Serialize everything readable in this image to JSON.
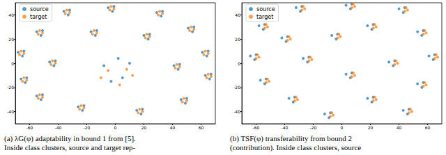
{
  "chart_data": [
    {
      "type": "scatter",
      "caption": [
        "(a) λG(φ) adaptability in bound 1 from [5].",
        "Inside class clusters, source and target rep-"
      ],
      "xlim": [
        -70,
        70
      ],
      "xticks": [
        -60,
        -40,
        -20,
        0,
        20,
        40,
        60
      ],
      "ylim": [
        -50,
        50
      ],
      "yticks": [
        -40,
        -20,
        0,
        20,
        40
      ],
      "legend": "upper left",
      "grid": false,
      "series": [
        {
          "name": "source",
          "color": "#1f77b4",
          "marker": "circle",
          "values": [
            [
              -36,
              43
            ],
            [
              -33,
              40
            ],
            [
              -32,
              44
            ],
            [
              -5,
              46
            ],
            [
              -2,
              43
            ],
            [
              -1,
              47
            ],
            [
              29,
              42
            ],
            [
              32,
              39
            ],
            [
              33,
              43
            ],
            [
              51,
              29
            ],
            [
              54,
              26
            ],
            [
              55,
              30
            ],
            [
              -55,
              26
            ],
            [
              -52,
              23
            ],
            [
              -51,
              27
            ],
            [
              -17,
              26
            ],
            [
              -14,
              23
            ],
            [
              -13,
              27
            ],
            [
              20,
              23
            ],
            [
              23,
              20
            ],
            [
              24,
              24
            ],
            [
              -68,
              9
            ],
            [
              -65,
              6
            ],
            [
              -64,
              10
            ],
            [
              61,
              9
            ],
            [
              64,
              6
            ],
            [
              65,
              10
            ],
            [
              -46,
              1
            ],
            [
              -43,
              -2
            ],
            [
              -42,
              2
            ],
            [
              41,
              -2
            ],
            [
              44,
              -5
            ],
            [
              45,
              -1
            ],
            [
              -66,
              -13
            ],
            [
              -63,
              -16
            ],
            [
              -62,
              -12
            ],
            [
              -8,
              -2
            ],
            [
              5,
              -12
            ],
            [
              10,
              0
            ],
            [
              -3,
              -15
            ],
            [
              2,
              4
            ],
            [
              63,
              -10
            ],
            [
              66,
              -13
            ],
            [
              67,
              -9
            ],
            [
              -55,
              -27
            ],
            [
              -52,
              -30
            ],
            [
              -51,
              -26
            ],
            [
              -26,
              -36
            ],
            [
              -23,
              -39
            ],
            [
              -22,
              -35
            ],
            [
              15,
              -39
            ],
            [
              18,
              -42
            ],
            [
              19,
              -38
            ],
            [
              46,
              -30
            ],
            [
              49,
              -33
            ],
            [
              50,
              -29
            ]
          ]
        },
        {
          "name": "target",
          "color": "#ff7f0e",
          "marker": "circle",
          "values": [
            [
              -35,
              41
            ],
            [
              -32,
              42
            ],
            [
              -34,
              44
            ],
            [
              -4,
              44
            ],
            [
              -1,
              45
            ],
            [
              -3,
              47
            ],
            [
              30,
              40
            ],
            [
              33,
              41
            ],
            [
              31,
              43
            ],
            [
              52,
              27
            ],
            [
              55,
              28
            ],
            [
              53,
              30
            ],
            [
              -54,
              24
            ],
            [
              -51,
              25
            ],
            [
              -53,
              27
            ],
            [
              -16,
              24
            ],
            [
              -13,
              25
            ],
            [
              -15,
              27
            ],
            [
              21,
              21
            ],
            [
              24,
              22
            ],
            [
              22,
              24
            ],
            [
              -67,
              7
            ],
            [
              -64,
              8
            ],
            [
              -66,
              10
            ],
            [
              62,
              7
            ],
            [
              65,
              8
            ],
            [
              63,
              10
            ],
            [
              -45,
              -1
            ],
            [
              -42,
              0
            ],
            [
              -44,
              2
            ],
            [
              42,
              -4
            ],
            [
              45,
              -3
            ],
            [
              43,
              -1
            ],
            [
              -65,
              -15
            ],
            [
              -62,
              -14
            ],
            [
              -64,
              -12
            ],
            [
              -5,
              -6
            ],
            [
              8,
              -5
            ],
            [
              -10,
              -12
            ],
            [
              3,
              -18
            ],
            [
              12,
              -10
            ],
            [
              64,
              -12
            ],
            [
              67,
              -11
            ],
            [
              65,
              -9
            ],
            [
              -54,
              -29
            ],
            [
              -51,
              -28
            ],
            [
              -53,
              -26
            ],
            [
              -25,
              -38
            ],
            [
              -22,
              -37
            ],
            [
              -24,
              -35
            ],
            [
              16,
              -41
            ],
            [
              19,
              -40
            ],
            [
              17,
              -38
            ],
            [
              47,
              -32
            ],
            [
              50,
              -31
            ],
            [
              48,
              -29
            ]
          ]
        }
      ]
    },
    {
      "type": "scatter",
      "caption": [
        "(b) TSF(φ) transferability from bound 2",
        "(contribution). Inside class clusters, source"
      ],
      "xlim": [
        -70,
        70
      ],
      "xticks": [
        -60,
        -40,
        -20,
        0,
        20,
        40,
        60
      ],
      "ylim": [
        -50,
        50
      ],
      "yticks": [
        -40,
        -20,
        0,
        20,
        40
      ],
      "legend": "upper left",
      "grid": false,
      "series": [
        {
          "name": "source",
          "color": "#1f77b4",
          "marker": "circle",
          "values": [
            [
              -32,
              46
            ],
            [
              -29,
              43
            ],
            [
              -28,
              47
            ],
            [
              3,
              48
            ],
            [
              6,
              45
            ],
            [
              7,
              49
            ],
            [
              40,
              45
            ],
            [
              43,
              42
            ],
            [
              44,
              46
            ],
            [
              -58,
              31
            ],
            [
              -55,
              28
            ],
            [
              -54,
              32
            ],
            [
              18,
              31
            ],
            [
              21,
              28
            ],
            [
              22,
              32
            ],
            [
              53,
              26
            ],
            [
              56,
              23
            ],
            [
              57,
              27
            ],
            [
              -42,
              21
            ],
            [
              -39,
              18
            ],
            [
              -38,
              22
            ],
            [
              -7,
              23
            ],
            [
              -4,
              20
            ],
            [
              -3,
              24
            ],
            [
              61,
              6
            ],
            [
              64,
              3
            ],
            [
              65,
              7
            ],
            [
              -64,
              6
            ],
            [
              -61,
              3
            ],
            [
              -60,
              7
            ],
            [
              -27,
              4
            ],
            [
              -24,
              1
            ],
            [
              -23,
              5
            ],
            [
              33,
              1
            ],
            [
              36,
              -2
            ],
            [
              37,
              2
            ],
            [
              -57,
              -14
            ],
            [
              -54,
              -17
            ],
            [
              -53,
              -13
            ],
            [
              3,
              -9
            ],
            [
              6,
              -12
            ],
            [
              7,
              -8
            ],
            [
              53,
              -17
            ],
            [
              56,
              -20
            ],
            [
              57,
              -16
            ],
            [
              -37,
              -29
            ],
            [
              -34,
              -32
            ],
            [
              -33,
              -28
            ],
            [
              18,
              -29
            ],
            [
              21,
              -32
            ],
            [
              22,
              -28
            ],
            [
              -12,
              -42
            ],
            [
              -9,
              -45
            ],
            [
              -8,
              -41
            ],
            [
              43,
              -39
            ],
            [
              46,
              -42
            ],
            [
              47,
              -38
            ]
          ]
        },
        {
          "name": "target",
          "color": "#ff7f0e",
          "marker": "circle",
          "values": [
            [
              -28,
              44
            ],
            [
              -26,
              45
            ],
            [
              -27,
              47
            ],
            [
              7,
              46
            ],
            [
              9,
              47
            ],
            [
              8,
              49
            ],
            [
              44,
              43
            ],
            [
              46,
              44
            ],
            [
              45,
              46
            ],
            [
              -54,
              29
            ],
            [
              -52,
              30
            ],
            [
              -53,
              32
            ],
            [
              22,
              29
            ],
            [
              24,
              30
            ],
            [
              23,
              32
            ],
            [
              57,
              24
            ],
            [
              59,
              25
            ],
            [
              58,
              27
            ],
            [
              -38,
              19
            ],
            [
              -36,
              20
            ],
            [
              -37,
              22
            ],
            [
              -3,
              21
            ],
            [
              -1,
              22
            ],
            [
              -2,
              24
            ],
            [
              65,
              4
            ],
            [
              67,
              5
            ],
            [
              66,
              7
            ],
            [
              -60,
              4
            ],
            [
              -58,
              5
            ],
            [
              -59,
              7
            ],
            [
              -23,
              2
            ],
            [
              -21,
              3
            ],
            [
              -22,
              5
            ],
            [
              37,
              -1
            ],
            [
              39,
              0
            ],
            [
              38,
              2
            ],
            [
              -53,
              -16
            ],
            [
              -51,
              -15
            ],
            [
              -52,
              -13
            ],
            [
              7,
              -11
            ],
            [
              9,
              -10
            ],
            [
              8,
              -8
            ],
            [
              57,
              -19
            ],
            [
              59,
              -18
            ],
            [
              58,
              -16
            ],
            [
              -33,
              -31
            ],
            [
              -31,
              -30
            ],
            [
              -32,
              -28
            ],
            [
              22,
              -31
            ],
            [
              24,
              -30
            ],
            [
              23,
              -28
            ],
            [
              -8,
              -44
            ],
            [
              -6,
              -43
            ],
            [
              -7,
              -41
            ],
            [
              47,
              -41
            ],
            [
              49,
              -40
            ],
            [
              48,
              -38
            ]
          ]
        }
      ]
    }
  ]
}
